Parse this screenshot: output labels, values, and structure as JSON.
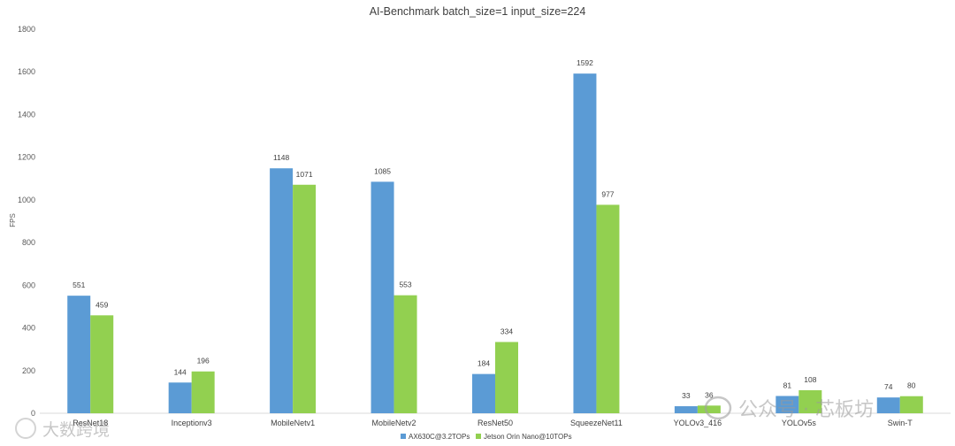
{
  "chart_data": {
    "type": "bar",
    "title": "AI-Benchmark batch_size=1 input_size=224",
    "ylabel": "FPS",
    "xlabel": "",
    "ylim": [
      0,
      1800
    ],
    "yticks": [
      0,
      200,
      400,
      600,
      800,
      1000,
      1200,
      1400,
      1600,
      1800
    ],
    "grid": false,
    "legend_position": "bottom",
    "categories": [
      "ResNet18",
      "Inceptionv3",
      "MobileNetv1",
      "MobileNetv2",
      "ResNet50",
      "SqueezeNet11",
      "YOLOv3_416",
      "YOLOv5s",
      "Swin-T"
    ],
    "series": [
      {
        "name": "AX630C@3.2TOPs",
        "color": "#5b9bd5",
        "values": [
          551,
          144,
          1148,
          1085,
          184,
          1592,
          33,
          81,
          74
        ]
      },
      {
        "name": "Jetson Orin Nano@10TOPs",
        "color": "#92d050",
        "values": [
          459,
          196,
          1071,
          553,
          334,
          977,
          36,
          108,
          80
        ]
      }
    ]
  },
  "watermarks": {
    "left": "大数跨境",
    "right": "公众号 · 芯板坊"
  }
}
